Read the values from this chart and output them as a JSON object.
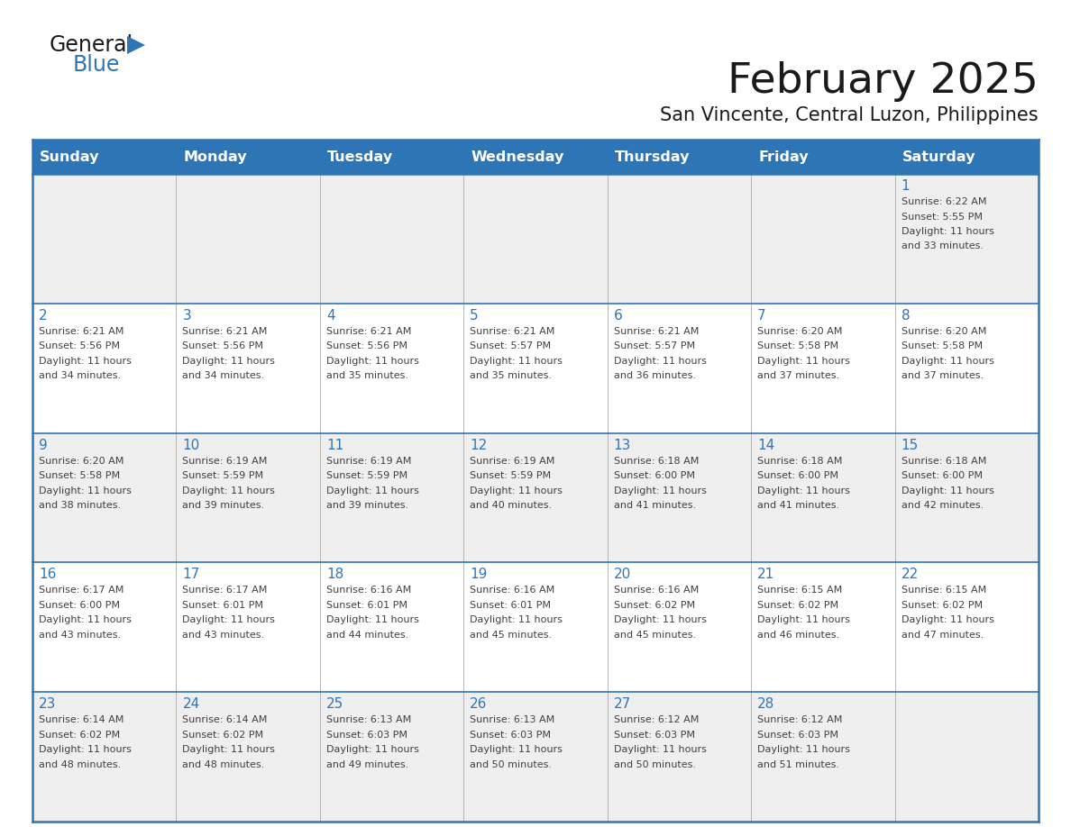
{
  "title": "February 2025",
  "subtitle": "San Vincente, Central Luzon, Philippines",
  "header_bg_color": "#2E75B6",
  "header_text_color": "#FFFFFF",
  "cell_bg_color_row0": "#EFEFEF",
  "cell_bg_color_odd": "#EFEFEF",
  "cell_bg_color_even": "#FFFFFF",
  "day_headers": [
    "Sunday",
    "Monday",
    "Tuesday",
    "Wednesday",
    "Thursday",
    "Friday",
    "Saturday"
  ],
  "title_color": "#1a1a1a",
  "subtitle_color": "#1a1a1a",
  "day_number_color": "#2E75B6",
  "info_text_color": "#404040",
  "border_color": "#2E75B6",
  "sep_color": "#AAAAAA",
  "calendar_data": [
    {
      "day": 1,
      "col": 6,
      "row": 0,
      "sunrise": "6:22 AM",
      "sunset": "5:55 PM",
      "daylight_hrs": "11 hours",
      "daylight_min": "and 33 minutes."
    },
    {
      "day": 2,
      "col": 0,
      "row": 1,
      "sunrise": "6:21 AM",
      "sunset": "5:56 PM",
      "daylight_hrs": "11 hours",
      "daylight_min": "and 34 minutes."
    },
    {
      "day": 3,
      "col": 1,
      "row": 1,
      "sunrise": "6:21 AM",
      "sunset": "5:56 PM",
      "daylight_hrs": "11 hours",
      "daylight_min": "and 34 minutes."
    },
    {
      "day": 4,
      "col": 2,
      "row": 1,
      "sunrise": "6:21 AM",
      "sunset": "5:56 PM",
      "daylight_hrs": "11 hours",
      "daylight_min": "and 35 minutes."
    },
    {
      "day": 5,
      "col": 3,
      "row": 1,
      "sunrise": "6:21 AM",
      "sunset": "5:57 PM",
      "daylight_hrs": "11 hours",
      "daylight_min": "and 35 minutes."
    },
    {
      "day": 6,
      "col": 4,
      "row": 1,
      "sunrise": "6:21 AM",
      "sunset": "5:57 PM",
      "daylight_hrs": "11 hours",
      "daylight_min": "and 36 minutes."
    },
    {
      "day": 7,
      "col": 5,
      "row": 1,
      "sunrise": "6:20 AM",
      "sunset": "5:58 PM",
      "daylight_hrs": "11 hours",
      "daylight_min": "and 37 minutes."
    },
    {
      "day": 8,
      "col": 6,
      "row": 1,
      "sunrise": "6:20 AM",
      "sunset": "5:58 PM",
      "daylight_hrs": "11 hours",
      "daylight_min": "and 37 minutes."
    },
    {
      "day": 9,
      "col": 0,
      "row": 2,
      "sunrise": "6:20 AM",
      "sunset": "5:58 PM",
      "daylight_hrs": "11 hours",
      "daylight_min": "and 38 minutes."
    },
    {
      "day": 10,
      "col": 1,
      "row": 2,
      "sunrise": "6:19 AM",
      "sunset": "5:59 PM",
      "daylight_hrs": "11 hours",
      "daylight_min": "and 39 minutes."
    },
    {
      "day": 11,
      "col": 2,
      "row": 2,
      "sunrise": "6:19 AM",
      "sunset": "5:59 PM",
      "daylight_hrs": "11 hours",
      "daylight_min": "and 39 minutes."
    },
    {
      "day": 12,
      "col": 3,
      "row": 2,
      "sunrise": "6:19 AM",
      "sunset": "5:59 PM",
      "daylight_hrs": "11 hours",
      "daylight_min": "and 40 minutes."
    },
    {
      "day": 13,
      "col": 4,
      "row": 2,
      "sunrise": "6:18 AM",
      "sunset": "6:00 PM",
      "daylight_hrs": "11 hours",
      "daylight_min": "and 41 minutes."
    },
    {
      "day": 14,
      "col": 5,
      "row": 2,
      "sunrise": "6:18 AM",
      "sunset": "6:00 PM",
      "daylight_hrs": "11 hours",
      "daylight_min": "and 41 minutes."
    },
    {
      "day": 15,
      "col": 6,
      "row": 2,
      "sunrise": "6:18 AM",
      "sunset": "6:00 PM",
      "daylight_hrs": "11 hours",
      "daylight_min": "and 42 minutes."
    },
    {
      "day": 16,
      "col": 0,
      "row": 3,
      "sunrise": "6:17 AM",
      "sunset": "6:00 PM",
      "daylight_hrs": "11 hours",
      "daylight_min": "and 43 minutes."
    },
    {
      "day": 17,
      "col": 1,
      "row": 3,
      "sunrise": "6:17 AM",
      "sunset": "6:01 PM",
      "daylight_hrs": "11 hours",
      "daylight_min": "and 43 minutes."
    },
    {
      "day": 18,
      "col": 2,
      "row": 3,
      "sunrise": "6:16 AM",
      "sunset": "6:01 PM",
      "daylight_hrs": "11 hours",
      "daylight_min": "and 44 minutes."
    },
    {
      "day": 19,
      "col": 3,
      "row": 3,
      "sunrise": "6:16 AM",
      "sunset": "6:01 PM",
      "daylight_hrs": "11 hours",
      "daylight_min": "and 45 minutes."
    },
    {
      "day": 20,
      "col": 4,
      "row": 3,
      "sunrise": "6:16 AM",
      "sunset": "6:02 PM",
      "daylight_hrs": "11 hours",
      "daylight_min": "and 45 minutes."
    },
    {
      "day": 21,
      "col": 5,
      "row": 3,
      "sunrise": "6:15 AM",
      "sunset": "6:02 PM",
      "daylight_hrs": "11 hours",
      "daylight_min": "and 46 minutes."
    },
    {
      "day": 22,
      "col": 6,
      "row": 3,
      "sunrise": "6:15 AM",
      "sunset": "6:02 PM",
      "daylight_hrs": "11 hours",
      "daylight_min": "and 47 minutes."
    },
    {
      "day": 23,
      "col": 0,
      "row": 4,
      "sunrise": "6:14 AM",
      "sunset": "6:02 PM",
      "daylight_hrs": "11 hours",
      "daylight_min": "and 48 minutes."
    },
    {
      "day": 24,
      "col": 1,
      "row": 4,
      "sunrise": "6:14 AM",
      "sunset": "6:02 PM",
      "daylight_hrs": "11 hours",
      "daylight_min": "and 48 minutes."
    },
    {
      "day": 25,
      "col": 2,
      "row": 4,
      "sunrise": "6:13 AM",
      "sunset": "6:03 PM",
      "daylight_hrs": "11 hours",
      "daylight_min": "and 49 minutes."
    },
    {
      "day": 26,
      "col": 3,
      "row": 4,
      "sunrise": "6:13 AM",
      "sunset": "6:03 PM",
      "daylight_hrs": "11 hours",
      "daylight_min": "and 50 minutes."
    },
    {
      "day": 27,
      "col": 4,
      "row": 4,
      "sunrise": "6:12 AM",
      "sunset": "6:03 PM",
      "daylight_hrs": "11 hours",
      "daylight_min": "and 50 minutes."
    },
    {
      "day": 28,
      "col": 5,
      "row": 4,
      "sunrise": "6:12 AM",
      "sunset": "6:03 PM",
      "daylight_hrs": "11 hours",
      "daylight_min": "and 51 minutes."
    }
  ],
  "logo_general_color": "#1a1a1a",
  "logo_blue_color": "#2E75B6",
  "logo_triangle_color": "#2E75B6"
}
